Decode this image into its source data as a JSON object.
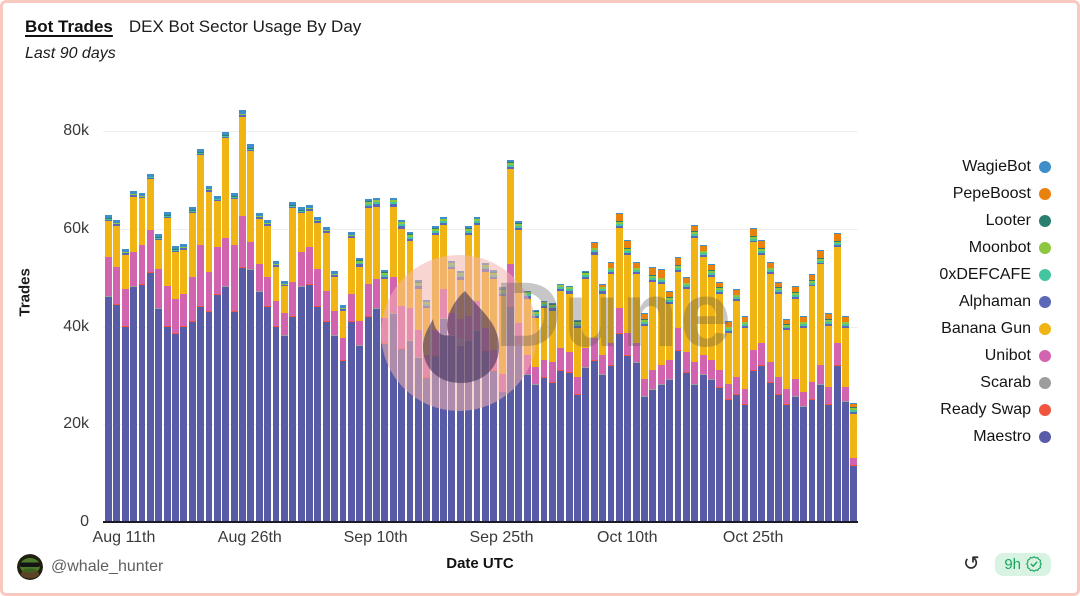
{
  "header": {
    "title": "Bot Trades",
    "subtitle": "DEX Bot Sector Usage By Day",
    "timeframe": "Last 90 days"
  },
  "footer": {
    "handle": "@whale_hunter",
    "refresh_icon": "refresh-counterclockwise",
    "age_badge": "9h",
    "verified_icon": "verified-seal-check"
  },
  "watermark": {
    "text": "Dune",
    "logo": "dune-flame-icon"
  },
  "colors": {
    "card_border": "#f9c9bf",
    "grid": "#efefef",
    "axis": "#1b1a26",
    "badge_bg": "#d9f3e3",
    "badge_text": "#17a45c"
  },
  "legend": {
    "position": "right",
    "items": [
      {
        "label": "WagieBot",
        "color": "#3e8fc9"
      },
      {
        "label": "PepeBoost",
        "color": "#e8810d"
      },
      {
        "label": "Looter",
        "color": "#297e6f"
      },
      {
        "label": "Moonbot",
        "color": "#8dc63f"
      },
      {
        "label": "0xDEFCAFE",
        "color": "#45c4a0"
      },
      {
        "label": "Alphaman",
        "color": "#5b67b7"
      },
      {
        "label": "Banana Gun",
        "color": "#f0b514"
      },
      {
        "label": "Unibot",
        "color": "#d263ae"
      },
      {
        "label": "Scarab",
        "color": "#9d9d9d"
      },
      {
        "label": "Ready Swap",
        "color": "#f1543f"
      },
      {
        "label": "Maestro",
        "color": "#585ca7"
      }
    ]
  },
  "chart_data": {
    "type": "bar",
    "variant": "stacked",
    "title": "Bot Trades",
    "subtitle": "DEX Bot Sector Usage By Day",
    "timeframe": "Last 90 days",
    "xlabel": "Date UTC",
    "ylabel": "Trades",
    "grid": true,
    "legend_position": "right",
    "ylim": [
      0,
      80000
    ],
    "y_ticks": [
      "0",
      "20k",
      "40k",
      "60k",
      "80k"
    ],
    "x_ticks": [
      {
        "index": 2,
        "label": "Aug 11th"
      },
      {
        "index": 17,
        "label": "Aug 26th"
      },
      {
        "index": 32,
        "label": "Sep 10th"
      },
      {
        "index": 47,
        "label": "Sep 25th"
      },
      {
        "index": 62,
        "label": "Oct 10th"
      },
      {
        "index": 77,
        "label": "Oct 25th"
      }
    ],
    "n_days": 90,
    "values_unit": "thousands of trades (estimated from pixels)",
    "stack_order_bottom_to_top": [
      "Maestro",
      "Ready Swap",
      "Scarab",
      "Unibot",
      "Banana Gun",
      "Alphaman",
      "0xDEFCAFE",
      "Moonbot",
      "Looter",
      "PepeBoost",
      "WagieBot"
    ],
    "series": [
      {
        "name": "WagieBot",
        "color": "#3e8fc9",
        "values": [
          0.6,
          0.6,
          0.6,
          0.6,
          0.6,
          0.6,
          0.6,
          0.6,
          0.6,
          0.6,
          0.6,
          0.6,
          0.6,
          0.6,
          0.7,
          0.6,
          0.8,
          0.8,
          0.6,
          0.6,
          0.6,
          0.6,
          0.6,
          0.6,
          0.6,
          0.6,
          0.6,
          0.6,
          0.6,
          0.6,
          0.4,
          0.4,
          0.4,
          0.4,
          0.4,
          0.4,
          0.4,
          0.4,
          0.4,
          0.4,
          0.4,
          0.4,
          0.4,
          0.4,
          0.4,
          0.4,
          0.4,
          0.4,
          0.4,
          0.4,
          0.2,
          0.2,
          0.2,
          0.2,
          0.2,
          0.2,
          0.2,
          0.2,
          0.2,
          0.2,
          0.2,
          0.2,
          0.2,
          0.2,
          0.2,
          0.2,
          0.2,
          0.2,
          0.2,
          0.2,
          0.2,
          0.2,
          0.2,
          0.2,
          0.2,
          0.2,
          0.2,
          0.2,
          0.2,
          0.2,
          0.2,
          0.2,
          0.2,
          0.2,
          0.2,
          0.2,
          0.2,
          0.2,
          0.2,
          0.2
        ]
      },
      {
        "name": "PepeBoost",
        "color": "#e8810d",
        "values": [
          0,
          0,
          0,
          0,
          0,
          0,
          0,
          0,
          0,
          0,
          0,
          0,
          0,
          0,
          0,
          0,
          0,
          0,
          0,
          0,
          0,
          0,
          0,
          0,
          0,
          0,
          0,
          0,
          0,
          0,
          0,
          0,
          0,
          0,
          0,
          0,
          0,
          0,
          0,
          0,
          0,
          0,
          0,
          0,
          0,
          0,
          0,
          0,
          0,
          0,
          0,
          0,
          0,
          0,
          0,
          0,
          0,
          0,
          1,
          0.5,
          1,
          1.5,
          1.5,
          1,
          1,
          1.5,
          1.5,
          1,
          1.5,
          1,
          1,
          1,
          1,
          1,
          1,
          1,
          1,
          1.5,
          1.5,
          1,
          1,
          0.8,
          1,
          1,
          1,
          1.5,
          1,
          1.5,
          1,
          0.6
        ]
      },
      {
        "name": "Looter",
        "color": "#297e6f",
        "values": [
          0.1,
          0.1,
          0.1,
          0.1,
          0.1,
          0.1,
          0.1,
          0.1,
          0.1,
          0.1,
          0.1,
          0.1,
          0.1,
          0.1,
          0.1,
          0.1,
          0.1,
          0.1,
          0.1,
          0.1,
          0.1,
          0.1,
          0.1,
          0.1,
          0.1,
          0.1,
          0.1,
          0.1,
          0.1,
          0.1,
          0.1,
          0.1,
          0.1,
          0.1,
          0.1,
          0.1,
          0.1,
          0.1,
          0.1,
          0.1,
          0.1,
          0.1,
          0.1,
          0.1,
          0.1,
          0.1,
          0.1,
          0.1,
          0.1,
          0.1,
          0.1,
          0.1,
          0.1,
          0.1,
          0.1,
          0.1,
          0.1,
          0.1,
          0.1,
          0.1,
          0.1,
          0.1,
          0.1,
          0.1,
          0.1,
          0.1,
          0.1,
          0.1,
          0.1,
          0.1,
          0.1,
          0.1,
          0.1,
          0.1,
          0.1,
          0.1,
          0.1,
          0.1,
          0.1,
          0.1,
          0.1,
          0.1,
          0.1,
          0.1,
          0.1,
          0.1,
          0.1,
          0.1,
          0.1,
          0.1
        ]
      },
      {
        "name": "Moonbot",
        "color": "#8dc63f",
        "values": [
          0.1,
          0.1,
          0.1,
          0.1,
          0.1,
          0.1,
          0.1,
          0.1,
          0.1,
          0.1,
          0.1,
          0.1,
          0.1,
          0.1,
          0.1,
          0.1,
          0.1,
          0.1,
          0.1,
          0.1,
          0.1,
          0.1,
          0.1,
          0.1,
          0.1,
          0.1,
          0.1,
          0.1,
          0.1,
          0.1,
          0.4,
          0.4,
          0.4,
          0.4,
          0.4,
          0.4,
          0.4,
          0.4,
          0.4,
          0.4,
          0.4,
          0.4,
          0.4,
          0.4,
          0.4,
          0.4,
          0.4,
          0.4,
          0.4,
          0.4,
          0.4,
          0.4,
          0.4,
          0.4,
          0.4,
          0.4,
          0.4,
          0.4,
          0.4,
          0.4,
          0.4,
          0.4,
          0.4,
          0.4,
          0.4,
          0.4,
          0.4,
          0.4,
          0.4,
          0.4,
          0.4,
          0.4,
          0.4,
          0.4,
          0.4,
          0.4,
          0.4,
          0.4,
          0.4,
          0.4,
          0.4,
          0.4,
          0.4,
          0.4,
          0.4,
          0.4,
          0.4,
          0.4,
          0.4,
          0.4
        ]
      },
      {
        "name": "0xDEFCAFE",
        "color": "#45c4a0",
        "values": [
          0.1,
          0.1,
          0.1,
          0.1,
          0.1,
          0.1,
          0.1,
          0.1,
          0.1,
          0.1,
          0.1,
          0.1,
          0.1,
          0.1,
          0.1,
          0.1,
          0.1,
          0.1,
          0.1,
          0.1,
          0.1,
          0.1,
          0.1,
          0.1,
          0.1,
          0.1,
          0.1,
          0.1,
          0.1,
          0.1,
          0.4,
          0.4,
          0.4,
          0.4,
          0.4,
          0.4,
          0.4,
          0.4,
          0.4,
          0.4,
          0.4,
          0.4,
          0.4,
          0.4,
          0.4,
          0.4,
          0.4,
          0.4,
          0.4,
          0.4,
          0.4,
          0.4,
          0.4,
          0.4,
          0.4,
          0.4,
          0.4,
          0.4,
          0.4,
          0.4,
          0.4,
          0.4,
          0.4,
          0.4,
          0.4,
          0.4,
          0.4,
          0.4,
          0.4,
          0.4,
          0.4,
          0.4,
          0.4,
          0.4,
          0.4,
          0.4,
          0.4,
          0.4,
          0.4,
          0.4,
          0.4,
          0.4,
          0.4,
          0.4,
          0.4,
          0.4,
          0.4,
          0.4,
          0.4,
          0.4
        ]
      },
      {
        "name": "Alphaman",
        "color": "#5b67b7",
        "values": [
          0.3,
          0.3,
          0.3,
          0.3,
          0.3,
          0.3,
          0.3,
          0.3,
          0.3,
          0.3,
          0.3,
          0.3,
          0.3,
          0.3,
          0.3,
          0.3,
          0.3,
          0.3,
          0.3,
          0.3,
          0.3,
          0.3,
          0.3,
          0.3,
          0.3,
          0.3,
          0.3,
          0.3,
          0.3,
          0.3,
          0.5,
          0.5,
          0.5,
          0.5,
          0.5,
          0.5,
          0.5,
          0.5,
          0.5,
          0.5,
          0.5,
          0.5,
          0.5,
          0.5,
          0.5,
          0.5,
          0.5,
          0.5,
          0.5,
          0.5,
          0.5,
          0.5,
          0.5,
          0.5,
          0.5,
          0.5,
          0.5,
          0.5,
          0.5,
          0.5,
          0.4,
          0.4,
          0.4,
          0.4,
          0.4,
          0.4,
          0.4,
          0.4,
          0.4,
          0.4,
          0.4,
          0.4,
          0.4,
          0.4,
          0.4,
          0.4,
          0.4,
          0.4,
          0.4,
          0.4,
          0.4,
          0.4,
          0.4,
          0.4,
          0.4,
          0.4,
          0.4,
          0.4,
          0.4,
          0.4
        ]
      },
      {
        "name": "Banana Gun",
        "color": "#f0b514",
        "values": [
          7.4,
          8.4,
          7,
          11.4,
          9.5,
          10.4,
          6,
          14,
          9.5,
          9,
          13,
          18.4,
          16.4,
          9.4,
          20.3,
          9.4,
          20.2,
          18.7,
          9.4,
          10.4,
          7,
          5.5,
          15,
          8,
          7.5,
          9.5,
          12,
          7,
          5.5,
          11.5,
          11,
          15.5,
          14.8,
          8,
          14.3,
          15.8,
          13.8,
          8.5,
          9.5,
          19.5,
          13,
          9,
          8,
          16.5,
          15.5,
          11.5,
          14.5,
          16,
          19.5,
          19,
          11.5,
          10,
          10.5,
          10.5,
          11.5,
          12,
          10,
          14,
          17,
          12.5,
          14,
          16.5,
          16,
          14,
          11,
          18,
          16.5,
          11.5,
          11.5,
          13,
          25.5,
          20,
          17,
          15.5,
          10.5,
          15.5,
          12.5,
          22,
          18,
          18,
          17,
          12,
          16.5,
          13,
          19.5,
          20.5,
          12.5,
          19.5,
          12,
          9
        ]
      },
      {
        "name": "Unibot",
        "color": "#d263ae",
        "values": [
          8,
          7.5,
          7.5,
          7,
          8,
          8.5,
          8,
          8,
          7,
          6.5,
          9,
          12.5,
          8,
          9.5,
          10,
          13.5,
          10.5,
          5.5,
          5.5,
          6,
          5,
          4.5,
          7,
          7,
          7.5,
          7.5,
          6,
          5,
          4.5,
          5.5,
          5,
          6.5,
          6,
          5,
          7.5,
          8.5,
          6.5,
          5.5,
          4.5,
          5,
          6,
          4.5,
          4,
          5,
          6,
          4.5,
          4,
          3.5,
          8.5,
          4.5,
          4,
          3.5,
          3.5,
          4,
          4.5,
          4,
          3.5,
          4,
          4.5,
          4,
          4.5,
          5,
          4.5,
          4,
          3.5,
          4,
          4,
          4,
          4.5,
          4,
          4.5,
          4,
          4,
          3.5,
          3,
          3.5,
          3,
          4,
          4.5,
          4,
          3.5,
          3,
          3.5,
          3,
          3.5,
          4,
          3.5,
          4.5,
          3,
          1.5
        ]
      },
      {
        "name": "Scarab",
        "color": "#9d9d9d",
        "values": [
          0.1,
          0.1,
          0.1,
          0.1,
          0.1,
          0.1,
          0.1,
          0.1,
          0.1,
          0.1,
          0.1,
          0.1,
          0.1,
          0.1,
          0.1,
          0.1,
          0.1,
          0.1,
          0.1,
          0.1,
          0.1,
          0.1,
          0.1,
          0.1,
          0.1,
          0.1,
          0.1,
          0.1,
          0.1,
          0.1,
          0.1,
          0.1,
          0.1,
          0.1,
          0.1,
          0.1,
          0.1,
          0.1,
          0.1,
          0.1,
          0.1,
          0.1,
          1.5,
          0.1,
          0.1,
          0.1,
          0.1,
          0.1,
          0.1,
          0.1,
          0.1,
          0.1,
          0.1,
          0.1,
          0.1,
          0.1,
          0.1,
          0.1,
          0.1,
          0.1,
          0.1,
          0.1,
          0.1,
          0.1,
          0.1,
          0.1,
          0.1,
          0.1,
          0.1,
          0.1,
          0.1,
          0.1,
          0.1,
          0.1,
          0.1,
          0.1,
          0.1,
          0.1,
          0.1,
          0.1,
          0.1,
          0.1,
          0.1,
          0.1,
          0.1,
          0.1,
          0.1,
          0.1,
          0.1,
          0.1
        ]
      },
      {
        "name": "Ready Swap",
        "color": "#f1543f",
        "values": [
          0.1,
          0.1,
          0.1,
          0.1,
          0.1,
          0.1,
          0.1,
          0.1,
          0.1,
          0.1,
          0.1,
          0.1,
          0.1,
          0.1,
          0.1,
          0.1,
          0.1,
          0.1,
          0.1,
          0.1,
          0.1,
          0.1,
          0.1,
          0.1,
          0.1,
          0.1,
          0.1,
          0.1,
          0.1,
          0.1,
          0.1,
          0.1,
          0.1,
          0.1,
          0.1,
          0.1,
          0.1,
          0.1,
          0.1,
          0.1,
          0.1,
          0.1,
          0.1,
          0.1,
          0.1,
          0.1,
          0.1,
          0.1,
          0.1,
          0.1,
          0.1,
          0.1,
          0.1,
          0.1,
          0.1,
          0.1,
          0.1,
          0.1,
          0.1,
          0.1,
          0.1,
          0.1,
          0.1,
          0.1,
          0.1,
          0.1,
          0.1,
          0.1,
          0.1,
          0.1,
          0.1,
          0.1,
          0.1,
          0.1,
          0.1,
          0.1,
          0.1,
          0.1,
          0.1,
          0.1,
          0.1,
          0.1,
          0.1,
          0.1,
          0.1,
          0.1,
          0.1,
          0.1,
          0.1,
          0.1
        ]
      },
      {
        "name": "Maestro",
        "color": "#585ca7",
        "values": [
          46,
          44.5,
          40,
          48,
          48.5,
          51,
          43.5,
          40,
          38.5,
          40,
          41,
          44,
          43,
          46.5,
          48,
          43,
          52,
          51.5,
          47,
          44,
          40,
          38,
          42,
          48,
          48.5,
          44,
          41,
          38,
          33,
          41,
          36,
          42,
          43.5,
          36.5,
          42.5,
          35.5,
          37,
          33.5,
          29.5,
          34,
          41.5,
          38,
          36,
          37,
          39,
          35,
          31,
          26.5,
          44,
          36,
          30,
          28,
          29.5,
          28.5,
          31,
          30.5,
          26,
          31.5,
          33,
          30,
          32,
          38.5,
          34,
          32.5,
          25.5,
          27,
          28,
          29,
          35,
          30.5,
          28,
          30,
          29,
          27.5,
          25,
          26,
          24,
          31,
          32,
          28.5,
          26,
          24,
          25.5,
          23.5,
          25,
          28,
          24,
          32,
          24.5,
          11.5
        ]
      }
    ]
  }
}
